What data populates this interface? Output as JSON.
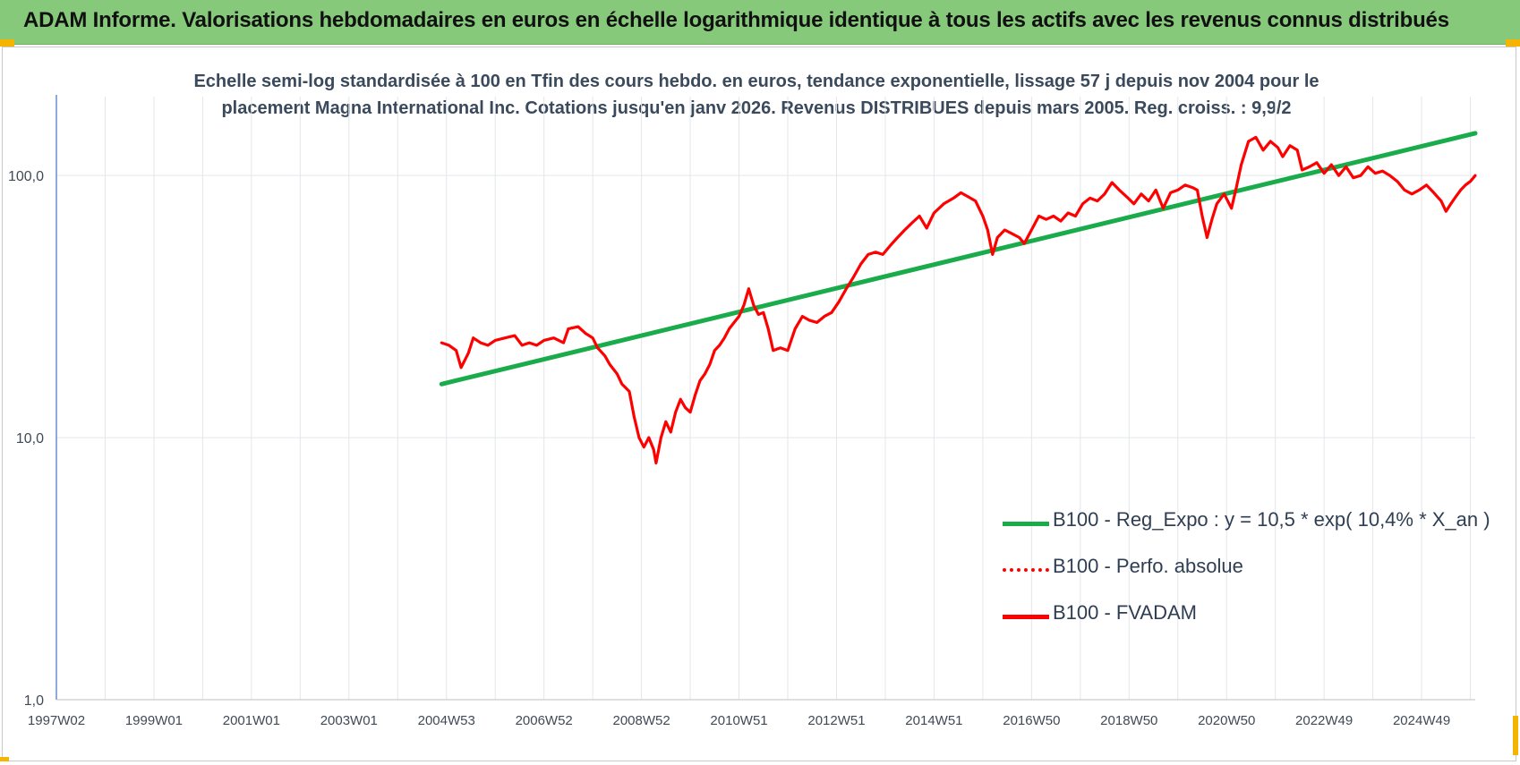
{
  "header": {
    "title": "ADAM Informe. Valorisations hebdomadaires en euros en échelle logarithmique identique à tous les actifs avec les revenus connus distribués"
  },
  "chart_data": {
    "type": "line",
    "title_lines": [
      "Echelle semi-log standardisée à 100 en Tfin des cours hebdo. en euros, tendance exponentielle, lissage 57 j depuis nov 2004 pour le",
      "placement Magna International Inc. Cotations jusqu'en janv 2026. Revenus DISTRIBUES depuis mars 2005. Reg. croiss. : 9,9/2"
    ],
    "y_scale": "log",
    "ylim": [
      1,
      200
    ],
    "y_ticks": [
      {
        "value": 100,
        "label": "100,0"
      },
      {
        "value": 10,
        "label": "10,0"
      },
      {
        "value": 1,
        "label": "1,0"
      }
    ],
    "xlim": [
      1997.0,
      2026.1
    ],
    "x_ticks": [
      {
        "value": 1997.0,
        "label": "1997W02"
      },
      {
        "value": 1999.0,
        "label": "1999W01"
      },
      {
        "value": 2001.0,
        "label": "2001W01"
      },
      {
        "value": 2003.0,
        "label": "2003W01"
      },
      {
        "value": 2005.0,
        "label": "2004W53"
      },
      {
        "value": 2007.0,
        "label": "2006W52"
      },
      {
        "value": 2009.0,
        "label": "2008W52"
      },
      {
        "value": 2011.0,
        "label": "2010W51"
      },
      {
        "value": 2013.0,
        "label": "2012W51"
      },
      {
        "value": 2015.0,
        "label": "2014W51"
      },
      {
        "value": 2017.0,
        "label": "2016W50"
      },
      {
        "value": 2019.0,
        "label": "2018W50"
      },
      {
        "value": 2021.0,
        "label": "2020W50"
      },
      {
        "value": 2023.0,
        "label": "2022W49"
      },
      {
        "value": 2025.0,
        "label": "2024W49"
      }
    ],
    "grid": true,
    "legend_position": "lower-right",
    "series": [
      {
        "name": "B100 - Reg_Expo : y = 10,5 * exp( 10,4% *  X_an )",
        "color": "#1aab4b",
        "style": "solid",
        "points": [
          [
            2004.9,
            16.0
          ],
          [
            2026.1,
            145.0
          ]
        ]
      },
      {
        "name": "B100 - Perfo. absolue",
        "color": "#ff0000",
        "style": "dotted",
        "points": []
      },
      {
        "name": "B100 - FVADAM",
        "color": "#ff0000",
        "style": "solid",
        "points": [
          [
            2004.9,
            23.0
          ],
          [
            2005.05,
            22.5
          ],
          [
            2005.2,
            21.5
          ],
          [
            2005.3,
            18.5
          ],
          [
            2005.45,
            21.0
          ],
          [
            2005.55,
            24.0
          ],
          [
            2005.7,
            23.0
          ],
          [
            2005.85,
            22.5
          ],
          [
            2006.0,
            23.5
          ],
          [
            2006.2,
            24.0
          ],
          [
            2006.4,
            24.5
          ],
          [
            2006.55,
            22.5
          ],
          [
            2006.7,
            23.0
          ],
          [
            2006.85,
            22.5
          ],
          [
            2007.0,
            23.5
          ],
          [
            2007.2,
            24.0
          ],
          [
            2007.4,
            23.0
          ],
          [
            2007.5,
            26.0
          ],
          [
            2007.7,
            26.5
          ],
          [
            2007.85,
            25.0
          ],
          [
            2008.0,
            24.0
          ],
          [
            2008.1,
            22.0
          ],
          [
            2008.25,
            20.5
          ],
          [
            2008.35,
            19.0
          ],
          [
            2008.5,
            17.5
          ],
          [
            2008.6,
            16.0
          ],
          [
            2008.75,
            15.0
          ],
          [
            2008.85,
            12.0
          ],
          [
            2008.95,
            10.0
          ],
          [
            2009.05,
            9.2
          ],
          [
            2009.15,
            10.0
          ],
          [
            2009.25,
            9.0
          ],
          [
            2009.3,
            8.0
          ],
          [
            2009.4,
            10.0
          ],
          [
            2009.5,
            11.5
          ],
          [
            2009.6,
            10.5
          ],
          [
            2009.7,
            12.5
          ],
          [
            2009.8,
            14.0
          ],
          [
            2009.9,
            13.0
          ],
          [
            2010.0,
            12.5
          ],
          [
            2010.1,
            14.5
          ],
          [
            2010.2,
            16.5
          ],
          [
            2010.3,
            17.5
          ],
          [
            2010.4,
            19.0
          ],
          [
            2010.5,
            21.5
          ],
          [
            2010.6,
            22.5
          ],
          [
            2010.7,
            24.0
          ],
          [
            2010.8,
            26.0
          ],
          [
            2010.9,
            27.5
          ],
          [
            2011.0,
            29.0
          ],
          [
            2011.1,
            32.0
          ],
          [
            2011.2,
            37.0
          ],
          [
            2011.3,
            32.0
          ],
          [
            2011.4,
            29.5
          ],
          [
            2011.5,
            30.0
          ],
          [
            2011.6,
            26.0
          ],
          [
            2011.7,
            21.5
          ],
          [
            2011.85,
            22.0
          ],
          [
            2012.0,
            21.5
          ],
          [
            2012.15,
            26.0
          ],
          [
            2012.3,
            29.0
          ],
          [
            2012.45,
            28.0
          ],
          [
            2012.6,
            27.5
          ],
          [
            2012.75,
            29.0
          ],
          [
            2012.9,
            30.0
          ],
          [
            2013.05,
            33.0
          ],
          [
            2013.2,
            37.0
          ],
          [
            2013.35,
            41.0
          ],
          [
            2013.5,
            46.0
          ],
          [
            2013.65,
            50.0
          ],
          [
            2013.8,
            51.0
          ],
          [
            2013.95,
            50.0
          ],
          [
            2014.1,
            54.0
          ],
          [
            2014.25,
            58.0
          ],
          [
            2014.4,
            62.0
          ],
          [
            2014.55,
            66.0
          ],
          [
            2014.7,
            70.0
          ],
          [
            2014.85,
            63.0
          ],
          [
            2015.0,
            72.0
          ],
          [
            2015.2,
            78.0
          ],
          [
            2015.4,
            82.0
          ],
          [
            2015.55,
            86.0
          ],
          [
            2015.7,
            83.0
          ],
          [
            2015.85,
            80.0
          ],
          [
            2016.0,
            70.0
          ],
          [
            2016.1,
            62.0
          ],
          [
            2016.2,
            50.0
          ],
          [
            2016.3,
            58.0
          ],
          [
            2016.45,
            62.0
          ],
          [
            2016.6,
            60.0
          ],
          [
            2016.75,
            58.0
          ],
          [
            2016.85,
            55.0
          ],
          [
            2017.0,
            62.0
          ],
          [
            2017.15,
            70.0
          ],
          [
            2017.3,
            68.0
          ],
          [
            2017.45,
            70.0
          ],
          [
            2017.6,
            67.0
          ],
          [
            2017.75,
            72.0
          ],
          [
            2017.9,
            70.0
          ],
          [
            2018.05,
            78.0
          ],
          [
            2018.2,
            82.0
          ],
          [
            2018.35,
            80.0
          ],
          [
            2018.5,
            85.0
          ],
          [
            2018.65,
            94.0
          ],
          [
            2018.8,
            88.0
          ],
          [
            2018.95,
            83.0
          ],
          [
            2019.1,
            78.0
          ],
          [
            2019.25,
            85.0
          ],
          [
            2019.4,
            80.0
          ],
          [
            2019.55,
            88.0
          ],
          [
            2019.7,
            75.0
          ],
          [
            2019.85,
            86.0
          ],
          [
            2020.0,
            88.0
          ],
          [
            2020.15,
            92.0
          ],
          [
            2020.3,
            90.0
          ],
          [
            2020.4,
            88.0
          ],
          [
            2020.5,
            70.0
          ],
          [
            2020.6,
            58.0
          ],
          [
            2020.7,
            68.0
          ],
          [
            2020.8,
            78.0
          ],
          [
            2020.95,
            85.0
          ],
          [
            2021.1,
            75.0
          ],
          [
            2021.2,
            90.0
          ],
          [
            2021.3,
            110.0
          ],
          [
            2021.45,
            135.0
          ],
          [
            2021.6,
            140.0
          ],
          [
            2021.75,
            125.0
          ],
          [
            2021.9,
            135.0
          ],
          [
            2022.05,
            128.0
          ],
          [
            2022.15,
            118.0
          ],
          [
            2022.3,
            130.0
          ],
          [
            2022.45,
            125.0
          ],
          [
            2022.55,
            105.0
          ],
          [
            2022.7,
            108.0
          ],
          [
            2022.85,
            112.0
          ],
          [
            2023.0,
            102.0
          ],
          [
            2023.15,
            110.0
          ],
          [
            2023.3,
            100.0
          ],
          [
            2023.45,
            108.0
          ],
          [
            2023.6,
            98.0
          ],
          [
            2023.75,
            100.0
          ],
          [
            2023.9,
            108.0
          ],
          [
            2024.05,
            102.0
          ],
          [
            2024.2,
            104.0
          ],
          [
            2024.35,
            100.0
          ],
          [
            2024.5,
            95.0
          ],
          [
            2024.65,
            88.0
          ],
          [
            2024.8,
            85.0
          ],
          [
            2024.95,
            88.0
          ],
          [
            2025.1,
            92.0
          ],
          [
            2025.25,
            86.0
          ],
          [
            2025.4,
            80.0
          ],
          [
            2025.5,
            73.0
          ],
          [
            2025.6,
            78.0
          ],
          [
            2025.7,
            83.0
          ],
          [
            2025.8,
            88.0
          ],
          [
            2025.9,
            92.0
          ],
          [
            2026.0,
            95.0
          ],
          [
            2026.1,
            100.0
          ]
        ]
      }
    ]
  }
}
